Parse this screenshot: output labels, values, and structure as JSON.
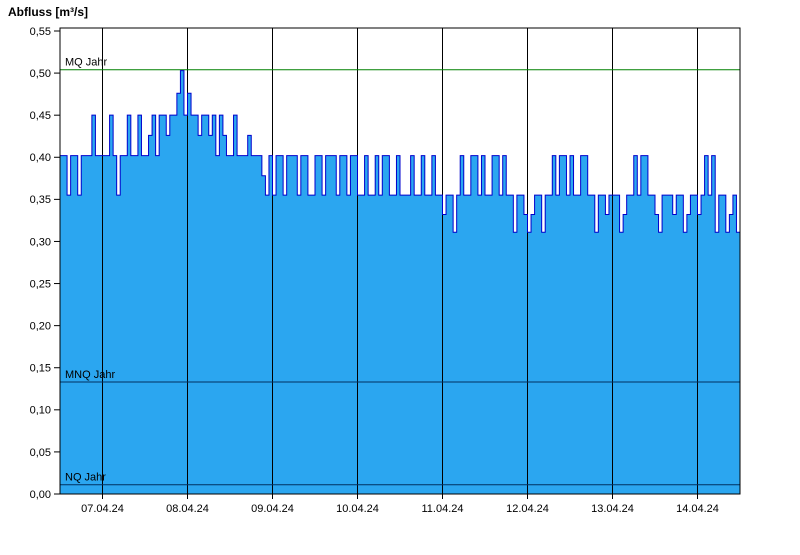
{
  "title": "Abfluss [m³/s]",
  "colors": {
    "area_fill": "#2BA6F0",
    "series_line": "#0000CC",
    "mq_line": "#008000",
    "mnq_line": "#003060",
    "nq_line": "#003060",
    "grid": "#000000",
    "plot_border": "#000000",
    "axis_text": "#000000",
    "background": "#FFFFFF"
  },
  "chart_data": {
    "type": "area",
    "title": "Abfluss [m³/s]",
    "ylabel": "Abfluss [m³/s]",
    "xlabel": "",
    "ylim": [
      0,
      0.55
    ],
    "grid": "vertical-day-lines",
    "legend_position": "none",
    "y_ticks": [
      {
        "value": 0.0,
        "label": "0,00"
      },
      {
        "value": 0.05,
        "label": "0,05"
      },
      {
        "value": 0.1,
        "label": "0,10"
      },
      {
        "value": 0.15,
        "label": "0,15"
      },
      {
        "value": 0.2,
        "label": "0,20"
      },
      {
        "value": 0.25,
        "label": "0,25"
      },
      {
        "value": 0.3,
        "label": "0,30"
      },
      {
        "value": 0.35,
        "label": "0,35"
      },
      {
        "value": 0.4,
        "label": "0,40"
      },
      {
        "value": 0.45,
        "label": "0,45"
      },
      {
        "value": 0.5,
        "label": "0,50"
      },
      {
        "value": 0.55,
        "label": "0,55"
      }
    ],
    "x_domain_days": [
      0,
      8
    ],
    "x_tick_positions_days": [
      0.5,
      1.5,
      2.5,
      3.5,
      4.5,
      5.5,
      6.5,
      7.5
    ],
    "x_tick_labels": [
      "07.04.24",
      "08.04.24",
      "09.04.24",
      "10.04.24",
      "11.04.24",
      "12.04.24",
      "13.04.24",
      "14.04.24"
    ],
    "sample_interval_hours": 1,
    "series_name": "Abfluss",
    "series_rle": [
      [
        0.402,
        2
      ],
      [
        0.355,
        1
      ],
      [
        0.402,
        2
      ],
      [
        0.355,
        1
      ],
      [
        0.402,
        3
      ],
      [
        0.45,
        1
      ],
      [
        0.402,
        2
      ],
      [
        0.402,
        2
      ],
      [
        0.45,
        1
      ],
      [
        0.402,
        1
      ],
      [
        0.355,
        1
      ],
      [
        0.402,
        2
      ],
      [
        0.45,
        1
      ],
      [
        0.402,
        2
      ],
      [
        0.45,
        1
      ],
      [
        0.402,
        2
      ],
      [
        0.426,
        1
      ],
      [
        0.45,
        1
      ],
      [
        0.402,
        1
      ],
      [
        0.45,
        2
      ],
      [
        0.426,
        1
      ],
      [
        0.45,
        2
      ],
      [
        0.476,
        1
      ],
      [
        0.503,
        1
      ],
      [
        0.45,
        1
      ],
      [
        0.476,
        1
      ],
      [
        0.45,
        2
      ],
      [
        0.426,
        1
      ],
      [
        0.45,
        2
      ],
      [
        0.426,
        1
      ],
      [
        0.45,
        1
      ],
      [
        0.402,
        1
      ],
      [
        0.45,
        1
      ],
      [
        0.426,
        1
      ],
      [
        0.402,
        2
      ],
      [
        0.45,
        1
      ],
      [
        0.402,
        3
      ],
      [
        0.426,
        1
      ],
      [
        0.402,
        3
      ],
      [
        0.378,
        1
      ],
      [
        0.355,
        1
      ],
      [
        0.402,
        1
      ],
      [
        0.355,
        1
      ],
      [
        0.402,
        2
      ],
      [
        0.355,
        1
      ],
      [
        0.402,
        3
      ],
      [
        0.355,
        1
      ],
      [
        0.402,
        2
      ],
      [
        0.355,
        2
      ],
      [
        0.402,
        2
      ],
      [
        0.355,
        1
      ],
      [
        0.402,
        3
      ],
      [
        0.355,
        1
      ],
      [
        0.402,
        2
      ],
      [
        0.355,
        1
      ],
      [
        0.402,
        2
      ],
      [
        0.355,
        2
      ],
      [
        0.402,
        1
      ],
      [
        0.355,
        2
      ],
      [
        0.402,
        1
      ],
      [
        0.355,
        1
      ],
      [
        0.402,
        2
      ],
      [
        0.355,
        2
      ],
      [
        0.402,
        1
      ],
      [
        0.355,
        3
      ],
      [
        0.402,
        1
      ],
      [
        0.355,
        2
      ],
      [
        0.402,
        1
      ],
      [
        0.355,
        2
      ],
      [
        0.402,
        1
      ],
      [
        0.355,
        2
      ],
      [
        0.332,
        1
      ],
      [
        0.355,
        2
      ],
      [
        0.311,
        1
      ],
      [
        0.355,
        1
      ],
      [
        0.402,
        1
      ],
      [
        0.355,
        2
      ],
      [
        0.402,
        2
      ],
      [
        0.355,
        1
      ],
      [
        0.402,
        1
      ],
      [
        0.355,
        2
      ],
      [
        0.402,
        2
      ],
      [
        0.355,
        1
      ],
      [
        0.402,
        1
      ],
      [
        0.355,
        2
      ],
      [
        0.311,
        1
      ],
      [
        0.355,
        2
      ],
      [
        0.332,
        1
      ],
      [
        0.311,
        1
      ],
      [
        0.332,
        1
      ],
      [
        0.355,
        2
      ],
      [
        0.311,
        1
      ],
      [
        0.355,
        2
      ],
      [
        0.402,
        1
      ],
      [
        0.355,
        1
      ],
      [
        0.402,
        2
      ],
      [
        0.355,
        1
      ],
      [
        0.402,
        1
      ],
      [
        0.355,
        2
      ],
      [
        0.402,
        2
      ],
      [
        0.355,
        2
      ],
      [
        0.311,
        1
      ],
      [
        0.355,
        2
      ],
      [
        0.332,
        1
      ],
      [
        0.355,
        1
      ],
      [
        0.355,
        2
      ],
      [
        0.311,
        1
      ],
      [
        0.332,
        1
      ],
      [
        0.355,
        2
      ],
      [
        0.402,
        1
      ],
      [
        0.355,
        1
      ],
      [
        0.402,
        2
      ],
      [
        0.355,
        2
      ],
      [
        0.332,
        1
      ],
      [
        0.311,
        1
      ],
      [
        0.355,
        3
      ],
      [
        0.332,
        1
      ],
      [
        0.355,
        2
      ],
      [
        0.311,
        1
      ],
      [
        0.332,
        1
      ],
      [
        0.355,
        2
      ],
      [
        0.332,
        1
      ],
      [
        0.355,
        1
      ],
      [
        0.402,
        1
      ],
      [
        0.355,
        1
      ],
      [
        0.402,
        1
      ],
      [
        0.311,
        1
      ],
      [
        0.355,
        2
      ],
      [
        0.311,
        1
      ],
      [
        0.332,
        1
      ],
      [
        0.355,
        1
      ],
      [
        0.311,
        1
      ]
    ],
    "reference_lines": [
      {
        "label": "MQ Jahr",
        "value": 0.504,
        "color": "#008000"
      },
      {
        "label": "MNQ Jahr",
        "value": 0.133,
        "color": "#003060"
      },
      {
        "label": "NQ Jahr",
        "value": 0.011,
        "color": "#003060"
      }
    ]
  }
}
